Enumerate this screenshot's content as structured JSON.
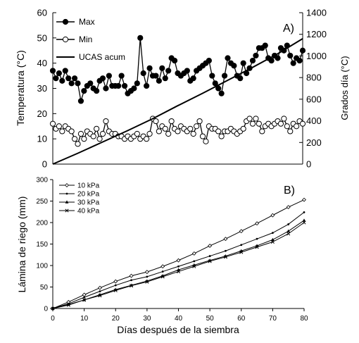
{
  "chart_data": [
    {
      "type": "line",
      "panel_label": "A)",
      "xlabel": "",
      "ylabel": "Temperatura (°C)",
      "y2label": "Grados día (°C)",
      "xlim": [
        0,
        80
      ],
      "ylim": [
        0,
        60
      ],
      "y2lim": [
        0,
        1400
      ],
      "yticks": [
        "0",
        "10",
        "20",
        "30",
        "40",
        "50",
        "60"
      ],
      "y2ticks": [
        "0",
        "200",
        "400",
        "600",
        "800",
        "1000",
        "1200",
        "1400"
      ],
      "legend_position": "top-left",
      "series": [
        {
          "name": "Max",
          "axis": "left",
          "marker": "filled-circle",
          "color": "#000000",
          "x": [
            0,
            1,
            2,
            3,
            4,
            5,
            6,
            7,
            8,
            9,
            10,
            11,
            12,
            13,
            14,
            15,
            16,
            17,
            18,
            19,
            20,
            21,
            22,
            23,
            24,
            25,
            26,
            27,
            28,
            29,
            30,
            31,
            32,
            33,
            34,
            35,
            36,
            37,
            38,
            39,
            40,
            41,
            42,
            43,
            44,
            45,
            46,
            47,
            48,
            49,
            50,
            51,
            52,
            53,
            54,
            55,
            56,
            57,
            58,
            59,
            60,
            61,
            62,
            63,
            64,
            65,
            66,
            67,
            68,
            69,
            70,
            71,
            72,
            73,
            74,
            75,
            76,
            77,
            78,
            79,
            80
          ],
          "values": [
            37,
            34,
            36,
            33,
            37,
            34,
            32,
            34,
            32,
            25,
            29,
            31,
            32,
            30,
            29,
            33,
            34,
            30,
            35,
            31,
            31,
            31,
            35,
            31,
            28,
            29,
            30,
            32,
            50,
            36,
            31,
            38,
            35,
            35,
            33,
            38,
            34,
            37,
            42,
            41,
            36,
            35,
            36,
            37,
            33,
            34,
            37,
            38,
            39,
            40,
            41,
            35,
            32,
            30,
            28,
            35,
            42,
            40,
            39,
            35,
            34,
            40,
            36,
            38,
            41,
            43,
            46,
            46,
            47,
            42,
            41,
            43,
            42,
            46,
            45,
            47,
            43,
            40,
            42,
            41,
            45
          ]
        },
        {
          "name": "Min",
          "axis": "left",
          "marker": "open-circle",
          "color": "#000000",
          "x": [
            0,
            1,
            2,
            3,
            4,
            5,
            6,
            7,
            8,
            9,
            10,
            11,
            12,
            13,
            14,
            15,
            16,
            17,
            18,
            19,
            20,
            21,
            22,
            23,
            24,
            25,
            26,
            27,
            28,
            29,
            30,
            31,
            32,
            33,
            34,
            35,
            36,
            37,
            38,
            39,
            40,
            41,
            42,
            43,
            44,
            45,
            46,
            47,
            48,
            49,
            50,
            51,
            52,
            53,
            54,
            55,
            56,
            57,
            58,
            59,
            60,
            61,
            62,
            63,
            64,
            65,
            66,
            67,
            68,
            69,
            70,
            71,
            72,
            73,
            74,
            75,
            76,
            77,
            78,
            79,
            80
          ],
          "values": [
            16,
            14,
            15,
            13,
            15,
            14,
            13,
            10,
            8,
            12,
            10,
            13,
            12,
            11,
            14,
            10,
            12,
            17,
            13,
            12,
            12,
            11,
            11,
            10,
            11,
            10,
            11,
            12,
            10,
            11,
            10,
            12,
            18,
            17,
            13,
            15,
            14,
            12,
            17,
            14,
            13,
            15,
            14,
            13,
            14,
            12,
            15,
            17,
            11,
            9,
            15,
            14,
            14,
            13,
            11,
            13,
            13,
            14,
            13,
            12,
            13,
            14,
            17,
            18,
            16,
            18,
            16,
            13,
            15,
            16,
            15,
            16,
            17,
            16,
            18,
            15,
            13,
            16,
            15,
            17,
            16
          ]
        },
        {
          "name": "UCAS acum",
          "axis": "right",
          "marker": "none",
          "color": "#000000",
          "x": [
            0,
            8,
            16,
            24,
            32,
            40,
            48,
            56,
            64,
            72,
            80
          ],
          "values": [
            0,
            100,
            205,
            310,
            420,
            540,
            655,
            775,
            895,
            1020,
            1160
          ]
        }
      ]
    },
    {
      "type": "line",
      "panel_label": "B)",
      "xlabel": "Días después de la siembra",
      "ylabel": "Lámina de riego (mm)",
      "xlim": [
        0,
        80
      ],
      "ylim": [
        0,
        300
      ],
      "xticks": [
        "0",
        "10",
        "20",
        "30",
        "40",
        "50",
        "60",
        "70",
        "80"
      ],
      "yticks": [
        "0",
        "50",
        "100",
        "150",
        "200",
        "250",
        "300"
      ],
      "legend_position": "top-left",
      "series": [
        {
          "name": "10 kPa",
          "marker": "open-diamond",
          "color": "#000000",
          "x": [
            0,
            5,
            10,
            15,
            20,
            25,
            30,
            35,
            40,
            45,
            50,
            55,
            60,
            65,
            70,
            75,
            80
          ],
          "values": [
            0,
            15,
            32,
            48,
            63,
            76,
            85,
            98,
            112,
            128,
            146,
            162,
            180,
            198,
            217,
            236,
            253
          ]
        },
        {
          "name": "20 kPa",
          "marker": "dot",
          "color": "#000000",
          "x": [
            0,
            5,
            10,
            15,
            20,
            25,
            30,
            35,
            40,
            45,
            50,
            55,
            60,
            65,
            70,
            75,
            80
          ],
          "values": [
            0,
            11,
            26,
            40,
            54,
            66,
            74,
            86,
            98,
            110,
            122,
            134,
            148,
            162,
            176,
            196,
            224
          ]
        },
        {
          "name": "30 kPa",
          "marker": "filled-triangle",
          "color": "#000000",
          "x": [
            0,
            5,
            10,
            15,
            20,
            25,
            30,
            35,
            40,
            45,
            50,
            55,
            60,
            65,
            70,
            75,
            80
          ],
          "values": [
            0,
            9,
            20,
            32,
            44,
            54,
            64,
            76,
            90,
            101,
            112,
            122,
            134,
            146,
            160,
            180,
            205
          ]
        },
        {
          "name": "40 kPa",
          "marker": "cross",
          "color": "#000000",
          "x": [
            0,
            5,
            10,
            15,
            20,
            25,
            30,
            35,
            40,
            45,
            50,
            55,
            60,
            65,
            70,
            75,
            80
          ],
          "values": [
            0,
            8,
            20,
            30,
            42,
            53,
            62,
            74,
            86,
            98,
            110,
            120,
            131,
            143,
            155,
            174,
            200
          ]
        }
      ]
    }
  ]
}
